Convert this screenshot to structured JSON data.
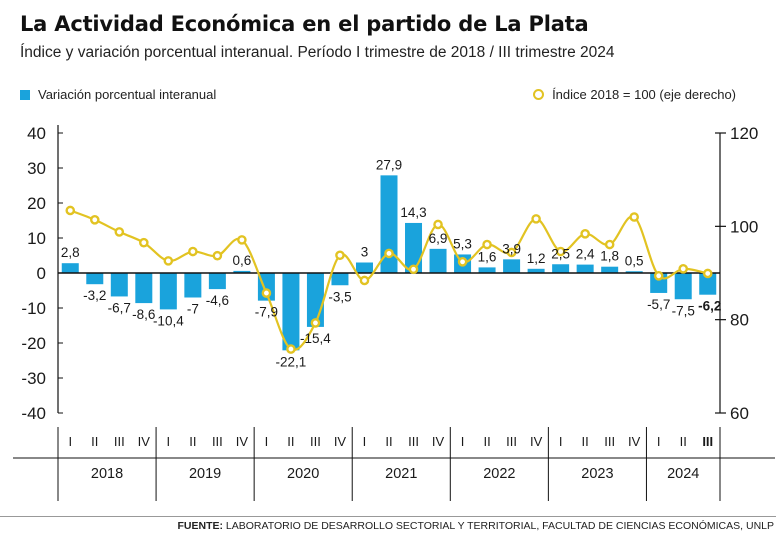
{
  "title": "La Actividad Económica en el partido de La Plata",
  "subtitle": "Índice y variación porcentual interanual. Período I trimestre de  2018 / III trimestre 2024",
  "legend": {
    "bars": "Variación porcentual interanual",
    "line": "Índice 2018 = 100 (eje derecho)"
  },
  "source": {
    "label": "FUENTE:",
    "text": " LABORATORIO DE DESARROLLO SECTORIAL Y TERRITORIAL, FACULTAD DE CIENCIAS ECONÓMICAS, UNLP"
  },
  "colors": {
    "bar": "#1aa3dc",
    "line": "#e2c322",
    "axis": "#111111"
  },
  "chart_data": {
    "type": "bar",
    "quarters": [
      "I",
      "II",
      "III",
      "IV",
      "I",
      "II",
      "III",
      "IV",
      "I",
      "II",
      "III",
      "IV",
      "I",
      "II",
      "III",
      "IV",
      "I",
      "II",
      "III",
      "IV",
      "I",
      "II",
      "III",
      "IV",
      "I",
      "II",
      "III"
    ],
    "years": [
      "2018",
      "2019",
      "2020",
      "2021",
      "2022",
      "2023",
      "2024"
    ],
    "y_left": {
      "ylim": [
        -40,
        40
      ],
      "ticks": [
        "40",
        "30",
        "20",
        "10",
        "0",
        "-10",
        "-20",
        "-30",
        "-40"
      ]
    },
    "y_right": {
      "ylim": [
        60,
        120
      ],
      "ticks": [
        "120",
        "100",
        "80",
        "60"
      ]
    },
    "series": [
      {
        "name": "Variación porcentual interanual",
        "type": "bar",
        "values": [
          2.8,
          -3.2,
          -6.7,
          -8.6,
          -10.4,
          -7,
          -4.6,
          0.6,
          -7.9,
          -22.1,
          -15.4,
          -3.5,
          3,
          27.9,
          14.3,
          6.9,
          5.3,
          1.6,
          3.9,
          1.2,
          2.5,
          2.4,
          1.8,
          0.5,
          -5.7,
          -7.5,
          -6.2
        ],
        "labels": [
          "2,8",
          "-3,2",
          "-6,7",
          "-8,6",
          "-10,4",
          "-7",
          "-4,6",
          "0,6",
          "-7,9",
          "-22,1",
          "-15,4",
          "-3,5",
          "3",
          "27,9",
          "14,3",
          "6,9",
          "5,3",
          "1,6",
          "3,9",
          "1,2",
          "2,5",
          "2,4",
          "1,8",
          "0,5",
          "-5,7",
          "-7,5",
          "-6,2"
        ]
      },
      {
        "name": "Índice 2018 = 100 (eje derecho)",
        "type": "line",
        "values": [
          103.4,
          101.4,
          98.8,
          96.5,
          92.6,
          94.6,
          93.7,
          97.1,
          85.7,
          73.7,
          79.3,
          93.8,
          88.4,
          94.2,
          90.8,
          100.4,
          92.4,
          96.1,
          94.4,
          101.6,
          94.6,
          98.4,
          96.1,
          102.0,
          89.4,
          90.9,
          89.9
        ]
      }
    ],
    "grid": false,
    "legend_position": "top"
  }
}
